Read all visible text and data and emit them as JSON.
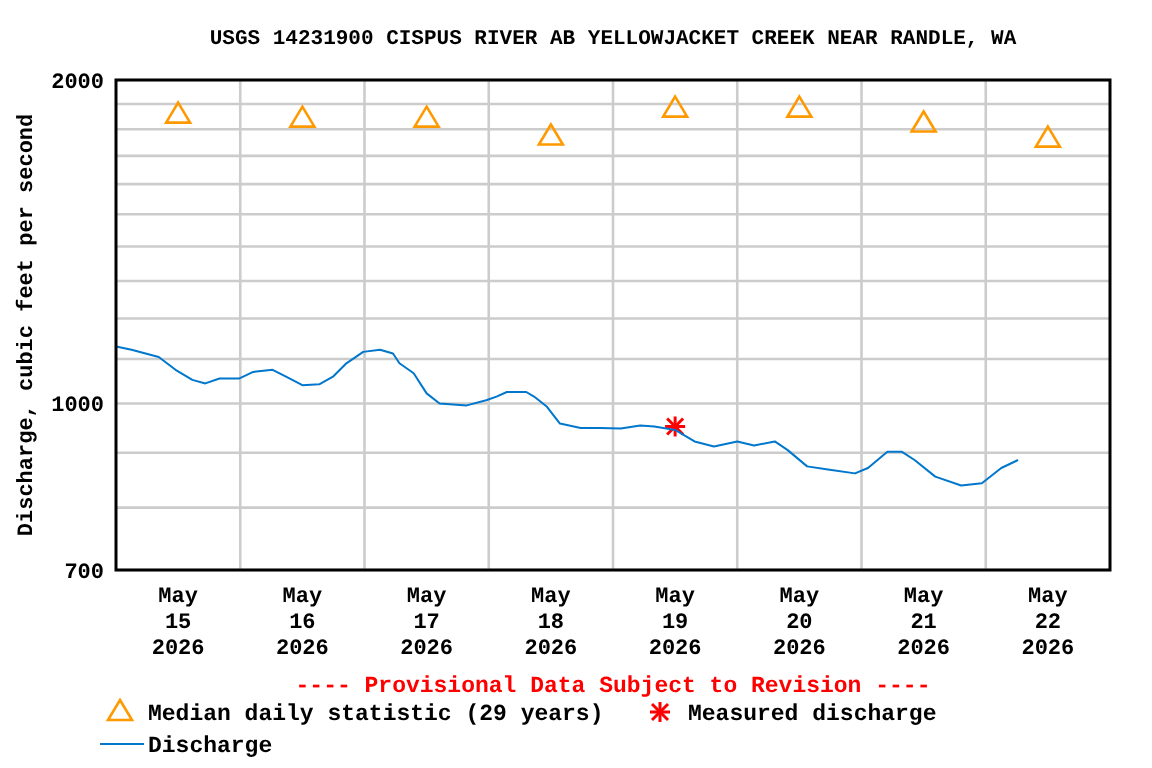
{
  "chart_data": {
    "type": "line",
    "title": "USGS 14231900 CISPUS RIVER AB YELLOWJACKET CREEK NEAR RANDLE, WA",
    "ylabel": "Discharge, cubic feet per second",
    "log": "y",
    "grid": true,
    "legend": "bottom",
    "annotations": [
      "---- Provisional Data Subject to Revision ----"
    ],
    "xlim": [
      "2026-05-15T00:00",
      "2026-05-23T00:00"
    ],
    "xticks": [
      {
        "value": "2026-05-15T12:00",
        "label": "May\n15\n2026"
      },
      {
        "value": "2026-05-16T00:00",
        "label": null
      },
      {
        "value": "2026-05-16T12:00",
        "label": "May\n16\n2026"
      },
      {
        "value": "2026-05-17T00:00",
        "label": null
      },
      {
        "value": "2026-05-17T12:00",
        "label": "May\n17\n2026"
      },
      {
        "value": "2026-05-18T00:00",
        "label": null
      },
      {
        "value": "2026-05-18T12:00",
        "label": "May\n18\n2026"
      },
      {
        "value": "2026-05-19T00:00",
        "label": null
      },
      {
        "value": "2026-05-19T12:00",
        "label": "May\n19\n2026"
      },
      {
        "value": "2026-05-20T00:00",
        "label": null
      },
      {
        "value": "2026-05-20T12:00",
        "label": "May\n20\n2026"
      },
      {
        "value": "2026-05-21T00:00",
        "label": null
      },
      {
        "value": "2026-05-21T12:00",
        "label": "May\n21\n2026"
      },
      {
        "value": "2026-05-22T00:00",
        "label": null
      },
      {
        "value": "2026-05-22T12:00",
        "label": "May\n22\n2026"
      }
    ],
    "ylim": [
      700,
      2000
    ],
    "yticks": [
      700,
      {
        "value": 800,
        "label": null
      },
      {
        "value": 900,
        "label": null
      },
      1000,
      {
        "value": 1100,
        "label": null
      },
      {
        "value": 1200,
        "label": null
      },
      {
        "value": 1300,
        "label": null
      },
      {
        "value": 1400,
        "label": null
      },
      {
        "value": 1500,
        "label": null
      },
      {
        "value": 1600,
        "label": null
      },
      {
        "value": 1700,
        "label": null
      },
      {
        "value": 1800,
        "label": null
      },
      {
        "value": 1900,
        "label": null
      },
      2000
    ],
    "series": [
      {
        "name": "Median daily statistic (29 years)",
        "type": "scatter",
        "marker": "triangle",
        "color": "#ff9900",
        "x": [
          "2026-05-15T12:00",
          "2026-05-16T12:00",
          "2026-05-17T12:00",
          "2026-05-18T12:00",
          "2026-05-19T12:00",
          "2026-05-20T12:00",
          "2026-05-21T12:00",
          "2026-05-22T12:00"
        ],
        "values": [
          1857,
          1841,
          1841,
          1772,
          1881,
          1881,
          1822,
          1764
        ]
      },
      {
        "name": "Measured discharge",
        "type": "scatter",
        "marker": "cross",
        "color": "#ff0000",
        "x": [
          "2026-05-19T12:00"
        ],
        "values": [
          952
        ]
      },
      {
        "name": "Discharge",
        "marker": "none",
        "line_style": "solid",
        "color": "#0077cc",
        "x": [
          "2026-05-15T00:00",
          "2026-05-15T03:00",
          "2026-05-15T08:15",
          "2026-05-15T11:30",
          "2026-05-15T14:45",
          "2026-05-15T17:15",
          "2026-05-15T20:00",
          "2026-05-15T23:45",
          "2026-05-16T02:30",
          "2026-05-16T06:15",
          "2026-05-16T08:45",
          "2026-05-16T12:00",
          "2026-05-16T15:15",
          "2026-05-16T18:00",
          "2026-05-16T20:30",
          "2026-05-16T23:45",
          "2026-05-17T03:00",
          "2026-05-17T05:30",
          "2026-05-17T06:45",
          "2026-05-17T09:30",
          "2026-05-17T12:00",
          "2026-05-17T14:30",
          "2026-05-17T19:45",
          "2026-05-17T23:30",
          "2026-05-18T01:30",
          "2026-05-18T03:30",
          "2026-05-18T07:15",
          "2026-05-18T08:45",
          "2026-05-18T11:15",
          "2026-05-18T13:45",
          "2026-05-18T17:45",
          "2026-05-18T21:30",
          "2026-05-19T01:30",
          "2026-05-19T05:15",
          "2026-05-19T08:00",
          "2026-05-19T12:00",
          "2026-05-19T15:45",
          "2026-05-19T19:30",
          "2026-05-20T00:00",
          "2026-05-20T03:15",
          "2026-05-20T07:15",
          "2026-05-20T09:45",
          "2026-05-20T13:30",
          "2026-05-20T17:30",
          "2026-05-20T22:45",
          "2026-05-21T01:15",
          "2026-05-21T05:00",
          "2026-05-21T07:45",
          "2026-05-21T10:15",
          "2026-05-21T14:15",
          "2026-05-21T19:15",
          "2026-05-21T23:15",
          "2026-05-22T03:00",
          "2026-05-22T06:15"
        ],
        "values": [
          1130,
          1122,
          1105,
          1075,
          1052,
          1044,
          1055,
          1055,
          1070,
          1075,
          1060,
          1040,
          1042,
          1060,
          1090,
          1117,
          1122,
          1113,
          1090,
          1067,
          1022,
          1000,
          996,
          1007,
          1015,
          1025,
          1025,
          1015,
          993,
          958,
          949,
          949,
          948,
          954,
          952,
          945,
          922,
          912,
          922,
          914,
          922,
          905,
          874,
          868,
          861,
          871,
          902,
          902,
          886,
          855,
          839,
          843,
          871,
          886
        ]
      }
    ]
  }
}
